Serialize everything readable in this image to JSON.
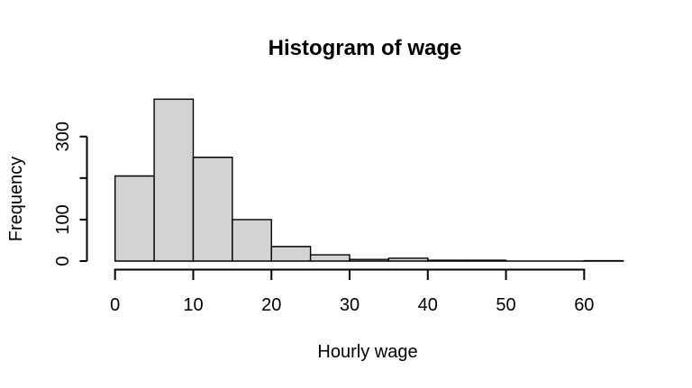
{
  "figure": {
    "background": "#ffffff"
  },
  "chart_data": {
    "type": "bar",
    "subtype": "histogram",
    "title": "Histogram of wage",
    "xlabel": "Hourly wage",
    "ylabel": "Frequency",
    "bin_edges": [
      0,
      5,
      10,
      15,
      20,
      25,
      30,
      35,
      40,
      45,
      50,
      55,
      60,
      65
    ],
    "counts": [
      205,
      390,
      250,
      100,
      35,
      15,
      4,
      7,
      2,
      2,
      0,
      0,
      1
    ],
    "x_axis": {
      "range": [
        0,
        65
      ],
      "ticks": [
        {
          "value": 0,
          "label": "0"
        },
        {
          "value": 10,
          "label": "10"
        },
        {
          "value": 20,
          "label": "20"
        },
        {
          "value": 30,
          "label": "30"
        },
        {
          "value": 40,
          "label": "40"
        },
        {
          "value": 50,
          "label": "50"
        },
        {
          "value": 60,
          "label": "60"
        }
      ]
    },
    "y_axis": {
      "range": [
        0,
        390
      ],
      "ticks": [
        {
          "value": 0,
          "label": "0"
        },
        {
          "value": 100,
          "label": "100"
        },
        {
          "value": 200,
          "label": ""
        },
        {
          "value": 300,
          "label": "300"
        }
      ]
    },
    "grid": false,
    "legend": null,
    "colors": {
      "bar_fill": "#d3d3d3",
      "bar_border": "#000000",
      "axis": "#000000",
      "text": "#000000"
    }
  }
}
